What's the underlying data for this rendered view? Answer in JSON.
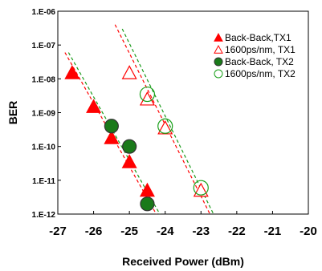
{
  "chart_data": {
    "type": "scatter",
    "xlabel": "Received Power (dBm)",
    "ylabel": "BER",
    "xlim": [
      -27,
      -20
    ],
    "ylim_log10": [
      -12,
      -6
    ],
    "x_ticks": [
      "-27",
      "-26",
      "-25",
      "-24",
      "-23",
      "-22",
      "-21",
      "-20"
    ],
    "y_ticks": [
      "1.E-06",
      "1.E-07",
      "1.E-08",
      "1.E-09",
      "1.E-10",
      "1.E-11",
      "1.E-12"
    ],
    "legend_position": "top-right",
    "series": [
      {
        "name": "Back-Back,TX1",
        "marker": "triangle-filled",
        "color": "#ff0000",
        "points": [
          {
            "x": -26.6,
            "y": 1.5e-08
          },
          {
            "x": -26.0,
            "y": 1.5e-09
          },
          {
            "x": -25.5,
            "y": 1.8e-10
          },
          {
            "x": -25.0,
            "y": 3.5e-11
          },
          {
            "x": -24.5,
            "y": 5e-12
          }
        ]
      },
      {
        "name": "1600ps/nm, TX1",
        "marker": "triangle-open",
        "color": "#ff0000",
        "points": [
          {
            "x": -25.0,
            "y": 1.5e-08
          },
          {
            "x": -24.5,
            "y": 2.5e-09
          },
          {
            "x": -24.0,
            "y": 3.5e-10
          },
          {
            "x": -23.0,
            "y": 5e-12
          }
        ]
      },
      {
        "name": "Back-Back, TX2",
        "marker": "circle-filled",
        "color": "#1a7a1a",
        "points": [
          {
            "x": -25.5,
            "y": 4e-10
          },
          {
            "x": -25.0,
            "y": 1e-10
          },
          {
            "x": -24.5,
            "y": 2e-12
          }
        ]
      },
      {
        "name": "1600ps/nm, TX2",
        "marker": "circle-open",
        "color": "#1aa01a",
        "points": [
          {
            "x": -24.5,
            "y": 3.5e-09
          },
          {
            "x": -24.0,
            "y": 4e-10
          },
          {
            "x": -23.0,
            "y": 6e-12
          }
        ]
      }
    ],
    "fit_lines": [
      {
        "color": "#ff0000",
        "from": {
          "x": -26.8,
          "y": 6e-08
        },
        "to": {
          "x": -24.25,
          "y": 1e-12
        }
      },
      {
        "color": "#1a9a1a",
        "from": {
          "x": -26.7,
          "y": 6e-08
        },
        "to": {
          "x": -24.15,
          "y": 1e-12
        }
      },
      {
        "color": "#ff0000",
        "from": {
          "x": -25.4,
          "y": 4e-07
        },
        "to": {
          "x": -22.75,
          "y": 1e-12
        }
      },
      {
        "color": "#1a9a1a",
        "from": {
          "x": -25.2,
          "y": 3e-07
        },
        "to": {
          "x": -22.65,
          "y": 1e-12
        }
      }
    ]
  }
}
